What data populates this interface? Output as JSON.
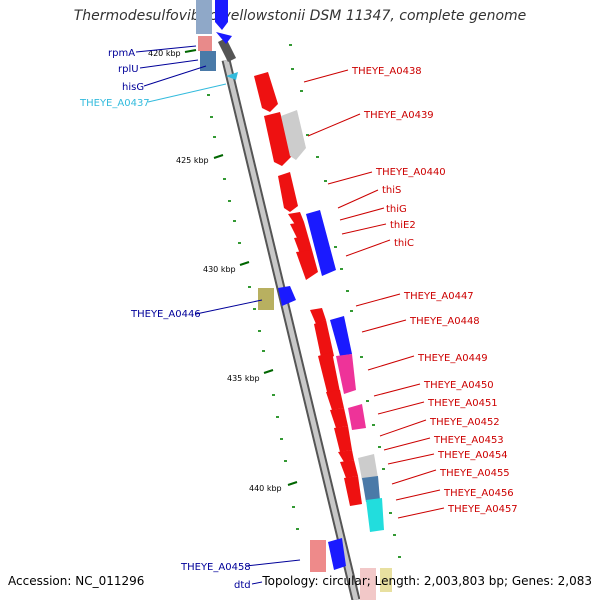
{
  "title": "Thermodesulfovibrio yellowstonii DSM 11347, complete genome",
  "footer": {
    "accession": "Accession: NC_011296",
    "topology": "Topology: circular; Length: 2,003,803 bp; Genes: 2,083"
  },
  "colors": {
    "backbone": "#7a7a7a",
    "red_label": "#cc0000",
    "blue_label": "#000099",
    "cyan_label": "#33bbdd",
    "tick": "#006600",
    "dot": "#339933"
  },
  "kbp_ticks": [
    "420 kbp",
    "425 kbp",
    "430 kbp",
    "435 kbp",
    "440 kbp"
  ],
  "right_labels": [
    "THEYE_A0438",
    "THEYE_A0439",
    "THEYE_A0440",
    "thiS",
    "thiG",
    "thiE2",
    "thiC",
    "THEYE_A0447",
    "THEYE_A0448",
    "THEYE_A0449",
    "THEYE_A0450",
    "THEYE_A0451",
    "THEYE_A0452",
    "THEYE_A0453",
    "THEYE_A0454",
    "THEYE_A0455",
    "THEYE_A0456",
    "THEYE_A0457"
  ],
  "left_labels": [
    "rpmA",
    "rplU",
    "hisG",
    "THEYE_A0437",
    "THEYE_A0446",
    "THEYE_A0458",
    "dtd"
  ]
}
